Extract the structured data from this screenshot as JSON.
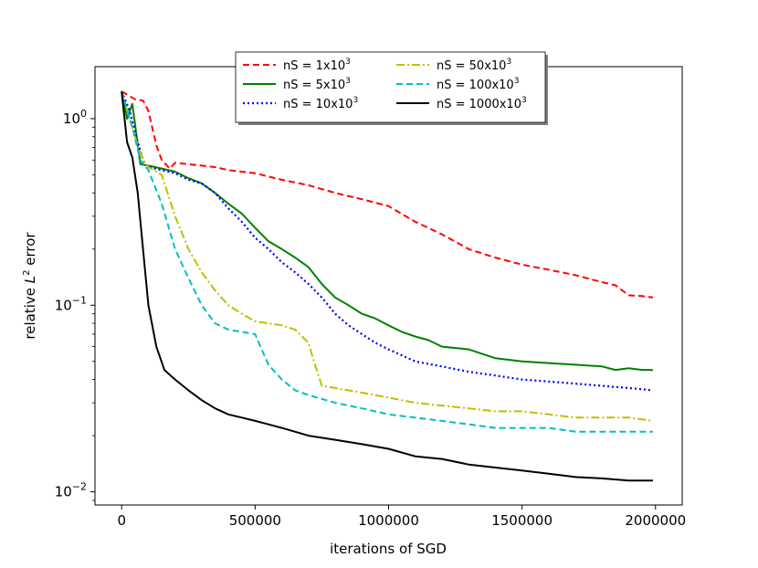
{
  "chart_data": {
    "type": "line",
    "title": "",
    "xlabel": "iterations of SGD",
    "ylabel": "relative L² error",
    "ylabel_parts": {
      "pre": "relative ",
      "italic": "L",
      "sup": "2",
      "post": " error"
    },
    "xscale": "linear",
    "yscale": "log",
    "xlim": [
      -100000,
      2100000
    ],
    "ylim": [
      0.0085,
      1.9
    ],
    "xticks": [
      0,
      500000,
      1000000,
      1500000,
      2000000
    ],
    "xtick_labels": [
      "0",
      "500000",
      "1000000",
      "1500000",
      "2000000"
    ],
    "yticks": [
      {
        "value": 1,
        "base": "10",
        "exp": "0"
      },
      {
        "value": 0.1,
        "base": "10",
        "exp": "−1"
      },
      {
        "value": 0.01,
        "base": "10",
        "exp": "−2"
      }
    ],
    "grid": false,
    "legend_position": "top-center",
    "series": [
      {
        "name": "nS = 1x10³",
        "label_base": "nS = 1x10",
        "label_sup": "3",
        "color": "#ff0000",
        "dash": "dashed",
        "x": [
          0,
          50000,
          80000,
          100000,
          130000,
          150000,
          180000,
          200000,
          250000,
          300000,
          350000,
          400000,
          500000,
          600000,
          700000,
          800000,
          900000,
          1000000,
          1100000,
          1200000,
          1300000,
          1400000,
          1500000,
          1600000,
          1700000,
          1800000,
          1850000,
          1900000,
          1950000,
          1990000
        ],
        "values": [
          1.4,
          1.27,
          1.25,
          1.1,
          0.72,
          0.6,
          0.54,
          0.58,
          0.57,
          0.56,
          0.55,
          0.53,
          0.51,
          0.47,
          0.44,
          0.4,
          0.37,
          0.34,
          0.28,
          0.24,
          0.2,
          0.18,
          0.165,
          0.155,
          0.145,
          0.133,
          0.128,
          0.113,
          0.112,
          0.11
        ]
      },
      {
        "name": "nS = 5x10³",
        "label_base": "nS = 5x10",
        "label_sup": "3",
        "color": "#008000",
        "dash": "solid",
        "x": [
          0,
          20000,
          40000,
          70000,
          100000,
          150000,
          200000,
          250000,
          300000,
          350000,
          400000,
          450000,
          500000,
          550000,
          600000,
          650000,
          700000,
          750000,
          800000,
          850000,
          900000,
          950000,
          1000000,
          1050000,
          1100000,
          1150000,
          1200000,
          1300000,
          1400000,
          1500000,
          1600000,
          1700000,
          1800000,
          1850000,
          1900000,
          1950000,
          1990000
        ],
        "values": [
          1.4,
          1.0,
          1.2,
          0.57,
          0.56,
          0.54,
          0.52,
          0.48,
          0.45,
          0.4,
          0.35,
          0.31,
          0.26,
          0.22,
          0.2,
          0.18,
          0.16,
          0.13,
          0.11,
          0.1,
          0.09,
          0.085,
          0.078,
          0.072,
          0.068,
          0.065,
          0.06,
          0.058,
          0.052,
          0.05,
          0.049,
          0.048,
          0.047,
          0.045,
          0.046,
          0.045,
          0.045
        ]
      },
      {
        "name": "nS = 10x10³",
        "label_base": "nS = 10x10",
        "label_sup": "3",
        "color": "#0000ff",
        "dash": "dotted",
        "x": [
          0,
          30000,
          60000,
          80000,
          100000,
          150000,
          200000,
          250000,
          300000,
          350000,
          400000,
          450000,
          500000,
          550000,
          600000,
          650000,
          700000,
          750000,
          800000,
          850000,
          900000,
          950000,
          1000000,
          1100000,
          1200000,
          1300000,
          1400000,
          1500000,
          1600000,
          1700000,
          1800000,
          1900000,
          1990000
        ],
        "values": [
          1.4,
          1.1,
          0.75,
          0.6,
          0.55,
          0.53,
          0.51,
          0.47,
          0.45,
          0.4,
          0.33,
          0.28,
          0.23,
          0.2,
          0.17,
          0.15,
          0.13,
          0.11,
          0.09,
          0.078,
          0.07,
          0.063,
          0.058,
          0.05,
          0.047,
          0.044,
          0.042,
          0.04,
          0.039,
          0.038,
          0.037,
          0.036,
          0.035
        ]
      },
      {
        "name": "nS = 50x10³",
        "label_base": "nS = 50x10",
        "label_sup": "3",
        "color": "#bfbf00",
        "dash": "dashdot",
        "x": [
          0,
          50000,
          80000,
          100000,
          150000,
          200000,
          250000,
          300000,
          350000,
          400000,
          450000,
          500000,
          550000,
          600000,
          650000,
          700000,
          720000,
          750000,
          800000,
          900000,
          1000000,
          1100000,
          1200000,
          1300000,
          1400000,
          1500000,
          1600000,
          1700000,
          1800000,
          1900000,
          1990000
        ],
        "values": [
          1.4,
          0.8,
          0.6,
          0.55,
          0.5,
          0.3,
          0.2,
          0.15,
          0.12,
          0.1,
          0.09,
          0.082,
          0.08,
          0.078,
          0.074,
          0.063,
          0.05,
          0.037,
          0.036,
          0.034,
          0.032,
          0.03,
          0.029,
          0.028,
          0.027,
          0.027,
          0.026,
          0.025,
          0.025,
          0.025,
          0.024
        ]
      },
      {
        "name": "nS = 100x10³",
        "label_base": "nS = 100x10",
        "label_sup": "3",
        "color": "#00bfbf",
        "dash": "dashed",
        "x": [
          0,
          40000,
          70000,
          100000,
          150000,
          200000,
          250000,
          300000,
          350000,
          400000,
          450000,
          500000,
          520000,
          550000,
          600000,
          650000,
          700000,
          800000,
          900000,
          1000000,
          1100000,
          1200000,
          1300000,
          1400000,
          1500000,
          1600000,
          1700000,
          1800000,
          1900000,
          1990000
        ],
        "values": [
          1.4,
          0.9,
          0.6,
          0.53,
          0.35,
          0.2,
          0.14,
          0.1,
          0.08,
          0.074,
          0.072,
          0.07,
          0.06,
          0.048,
          0.04,
          0.035,
          0.033,
          0.03,
          0.028,
          0.026,
          0.025,
          0.024,
          0.023,
          0.022,
          0.022,
          0.022,
          0.021,
          0.021,
          0.021,
          0.021
        ]
      },
      {
        "name": "nS = 1000x10³",
        "label_base": "nS = 1000x10",
        "label_sup": "3",
        "color": "#000000",
        "dash": "solid",
        "x": [
          0,
          20000,
          40000,
          60000,
          80000,
          100000,
          130000,
          160000,
          200000,
          250000,
          300000,
          350000,
          400000,
          450000,
          500000,
          550000,
          600000,
          700000,
          800000,
          900000,
          1000000,
          1100000,
          1200000,
          1300000,
          1400000,
          1500000,
          1600000,
          1700000,
          1800000,
          1900000,
          1990000
        ],
        "values": [
          1.4,
          0.75,
          0.62,
          0.4,
          0.2,
          0.1,
          0.06,
          0.045,
          0.04,
          0.035,
          0.031,
          0.028,
          0.026,
          0.025,
          0.024,
          0.023,
          0.022,
          0.02,
          0.019,
          0.018,
          0.017,
          0.0155,
          0.015,
          0.014,
          0.0135,
          0.013,
          0.0125,
          0.012,
          0.0118,
          0.0115,
          0.0115
        ]
      }
    ]
  }
}
